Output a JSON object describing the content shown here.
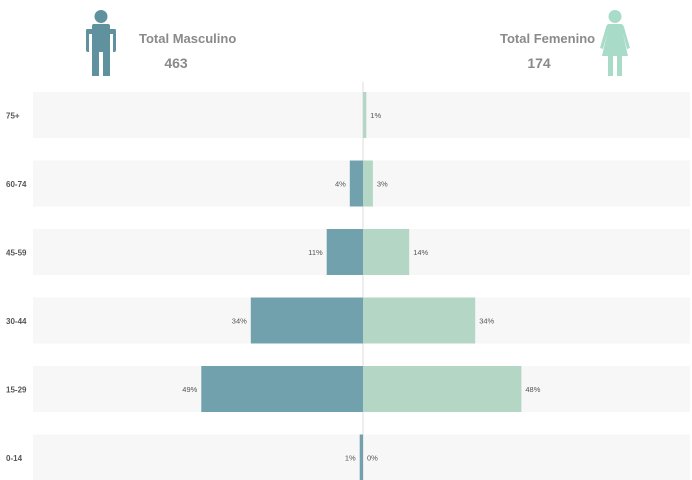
{
  "header": {
    "male_label": "Total Masculino",
    "male_total": "463",
    "female_label": "Total Femenino",
    "female_total": "174"
  },
  "colors": {
    "male": "#71a1ac",
    "female": "#b3d6c5",
    "male_icon": "#5f929e",
    "female_icon": "#a8dcc9",
    "band": "#f7f7f7",
    "axis": "#dddddd",
    "text": "#555555"
  },
  "icons": {
    "male": "male-person-icon",
    "female": "female-person-icon"
  },
  "chart_data": {
    "type": "bar",
    "orientation": "horizontal-diverging",
    "categories": [
      "75+",
      "60-74",
      "45-59",
      "30-44",
      "15-29",
      "0-14"
    ],
    "series": [
      {
        "values": [
          0,
          4,
          11,
          34,
          49,
          1
        ],
        "labels": [
          "",
          "4%",
          "11%",
          "34%",
          "49%",
          "1%"
        ]
      },
      {
        "values": [
          1,
          3,
          14,
          34,
          48,
          0
        ],
        "labels": [
          "1%",
          "3%",
          "14%",
          "34%",
          "48%",
          "0%"
        ]
      }
    ],
    "xlim": [
      -100,
      100
    ],
    "grid": false
  }
}
